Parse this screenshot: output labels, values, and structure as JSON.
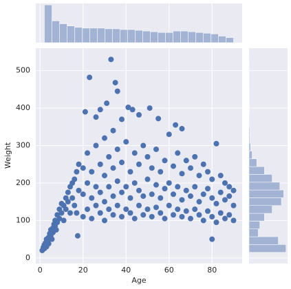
{
  "chart_data": [
    {
      "type": "scatter",
      "x_label": "Age",
      "y_label": "Weight",
      "color": "#4c72b0",
      "grid": true,
      "xlim": [
        -2,
        94
      ],
      "ylim": [
        -15,
        560
      ],
      "xticks": [
        0,
        20,
        40,
        60,
        80
      ],
      "yticks": [
        0,
        100,
        200,
        300,
        400,
        500
      ],
      "x": [
        1,
        1.5,
        2,
        2,
        2.5,
        3,
        3,
        3.5,
        4,
        4,
        4.5,
        5,
        5,
        5.5,
        6,
        6,
        6.5,
        7,
        7,
        7.5,
        8,
        8,
        9,
        9,
        10,
        10,
        11,
        11,
        12,
        12,
        13,
        13,
        14,
        14,
        15,
        15,
        16,
        16,
        17,
        17,
        18,
        18,
        17.5,
        20,
        20,
        20,
        22,
        22,
        22,
        24,
        24,
        24,
        26,
        26,
        26,
        28,
        28,
        28,
        30,
        30,
        30,
        30,
        32,
        32,
        32,
        34,
        34,
        34,
        34,
        36,
        36,
        36,
        38,
        38,
        38,
        40,
        40,
        40,
        42,
        42,
        42,
        44,
        44,
        44,
        46,
        46,
        46,
        48,
        48,
        48,
        50,
        50,
        50,
        52,
        52,
        52,
        54,
        54,
        54,
        56,
        56,
        56,
        58,
        58,
        58,
        60,
        60,
        60,
        62,
        62,
        62,
        64,
        64,
        64,
        66,
        66,
        66,
        68,
        68,
        68,
        70,
        70,
        70,
        72,
        72,
        72,
        74,
        74,
        74,
        76,
        76,
        76,
        78,
        78,
        78,
        80,
        80,
        80,
        82,
        82,
        82,
        84,
        84,
        84,
        86,
        86,
        86,
        88,
        88,
        88,
        90,
        90,
        90,
        80,
        33,
        23,
        35,
        36,
        31,
        41,
        43,
        51,
        28,
        21,
        46,
        26,
        38,
        55,
        63,
        66
      ],
      "y": [
        20,
        28,
        25,
        35,
        40,
        30,
        50,
        45,
        55,
        38,
        65,
        60,
        75,
        50,
        80,
        68,
        90,
        85,
        100,
        75,
        95,
        115,
        105,
        130,
        120,
        145,
        140,
        100,
        160,
        130,
        175,
        150,
        190,
        120,
        200,
        160,
        210,
        140,
        230,
        120,
        180,
        250,
        59,
        110,
        170,
        240,
        130,
        200,
        280,
        105,
        160,
        230,
        140,
        190,
        300,
        120,
        175,
        250,
        100,
        150,
        220,
        320,
        130,
        190,
        270,
        115,
        165,
        240,
        340,
        140,
        205,
        290,
        110,
        175,
        255,
        130,
        190,
        310,
        120,
        160,
        230,
        105,
        200,
        280,
        140,
        180,
        250,
        115,
        165,
        300,
        130,
        210,
        270,
        110,
        170,
        240,
        135,
        195,
        290,
        120,
        160,
        230,
        105,
        185,
        260,
        140,
        200,
        330,
        115,
        170,
        245,
        130,
        190,
        280,
        110,
        155,
        225,
        125,
        180,
        260,
        105,
        165,
        240,
        130,
        190,
        270,
        115,
        150,
        220,
        100,
        170,
        250,
        125,
        185,
        230,
        110,
        160,
        210,
        95,
        145,
        305,
        120,
        175,
        220,
        105,
        155,
        200,
        115,
        165,
        190,
        100,
        140,
        180,
        50,
        530,
        482,
        468,
        445,
        413,
        402,
        396,
        400,
        396,
        390,
        382,
        376,
        370,
        372,
        355,
        345
      ]
    },
    {
      "type": "histogram",
      "orientation": "vertical",
      "color": "#4c72b0",
      "ylim": [
        0,
        54
      ],
      "bins": [
        2,
        5.52,
        9.04,
        12.56,
        16.08,
        19.6,
        23.12,
        26.64,
        30.16,
        33.68,
        37.2,
        40.72,
        44.24,
        47.76,
        51.28,
        54.8,
        58.32,
        61.84,
        65.36,
        68.88,
        72.4,
        75.92,
        79.44,
        82.96,
        86.48,
        90
      ],
      "values": [
        52,
        30,
        26,
        23,
        21,
        20,
        20,
        20,
        19,
        19,
        18,
        18,
        17,
        16,
        15,
        14,
        14,
        16,
        16,
        15,
        14,
        13,
        12,
        9,
        7
      ]
    },
    {
      "type": "histogram",
      "orientation": "horizontal",
      "color": "#4c72b0",
      "xlim": [
        0,
        50
      ],
      "bins": [
        15,
        35.8,
        56.6,
        77.4,
        98.2,
        119,
        139.8,
        160.6,
        181.4,
        202.2,
        223,
        243.8,
        264.6,
        285.4,
        306.2,
        327,
        347.8,
        368.6,
        389.4,
        410.2,
        431,
        451.8,
        472.6,
        493.4,
        514.2,
        535
      ],
      "values": [
        48,
        38,
        12,
        14,
        20,
        30,
        42,
        45,
        40,
        30,
        20,
        10,
        4,
        2,
        1,
        1,
        0.5,
        0.5,
        0.3,
        0.2,
        0.2,
        0.1,
        0.1,
        0.1,
        0.1
      ]
    }
  ]
}
